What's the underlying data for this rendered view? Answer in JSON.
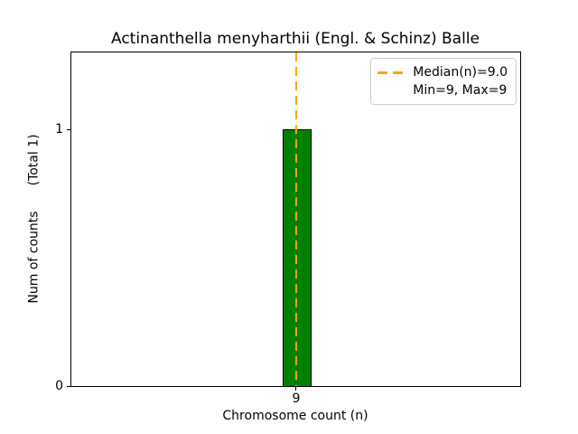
{
  "chart_data": {
    "type": "bar",
    "title": "Actinanthella menyharthii (Engl. & Schinz) Balle",
    "xlabel": "Chromosome count (n)",
    "ylabel": "Num of counts",
    "ylabel_note": "(Total 1)",
    "categories": [
      9
    ],
    "values": [
      1
    ],
    "x_tick_labels": [
      "9"
    ],
    "y_tick_labels": [
      "0",
      "1"
    ],
    "ylim": [
      0,
      1.3
    ],
    "grid": false,
    "bar_color": "#008000",
    "bar_edge_color": "#000000",
    "background_color": "#ffffff",
    "median_line": {
      "value": 9.0,
      "color": "#ffa500",
      "style": "dashed",
      "orientation": "vertical"
    },
    "stats": {
      "median": 9.0,
      "min": 9,
      "max": 9,
      "total_counts": 1
    },
    "legend": {
      "position": "upper right",
      "entries": [
        {
          "label": "Median(n)=9.0",
          "handle": "dashed-line",
          "color": "#ffa500"
        },
        {
          "label": "Min=9, Max=9",
          "handle": "none"
        }
      ]
    }
  }
}
